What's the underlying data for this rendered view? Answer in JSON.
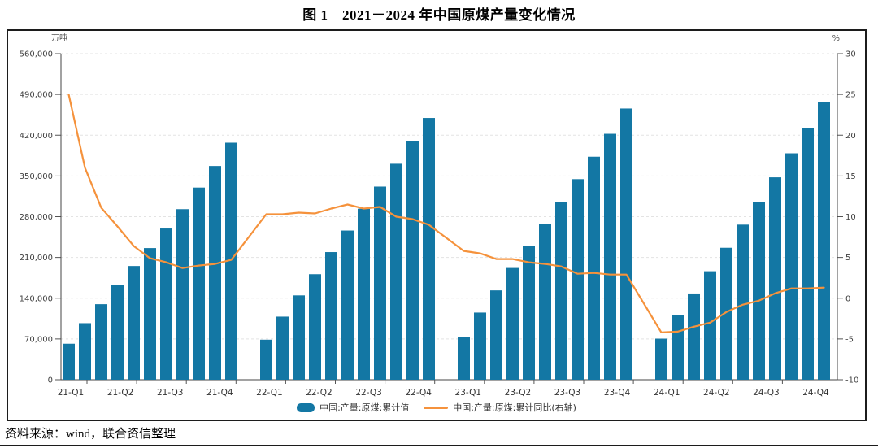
{
  "page": {
    "title": "图 1　2021－2024 年中国原煤产量变化情况",
    "source_note": "资料来源：wind，联合资信整理"
  },
  "chart_data": {
    "type": "bar",
    "title": "图 1　2021－2024 年中国原煤产量变化情况",
    "legend_position": "bottom-center",
    "grid": "horizontal-dashed",
    "x_months": [
      "2021-02",
      "2021-03",
      "2021-04",
      "2021-05",
      "2021-06",
      "2021-07",
      "2021-08",
      "2021-09",
      "2021-10",
      "2021-11",
      "2021-12",
      "2022-02",
      "2022-03",
      "2022-04",
      "2022-05",
      "2022-06",
      "2022-07",
      "2022-08",
      "2022-09",
      "2022-10",
      "2022-11",
      "2022-12",
      "2023-02",
      "2023-03",
      "2023-04",
      "2023-05",
      "2023-06",
      "2023-07",
      "2023-08",
      "2023-09",
      "2023-10",
      "2023-11",
      "2023-12",
      "2024-02",
      "2024-03",
      "2024-04",
      "2024-05",
      "2024-06",
      "2024-07",
      "2024-08",
      "2024-09",
      "2024-10",
      "2024-11",
      "2024-12"
    ],
    "x_tick_labels": [
      "21-Q1",
      "21-Q2",
      "21-Q3",
      "21-Q4",
      "22-Q1",
      "22-Q2",
      "22-Q3",
      "22-Q4",
      "23-Q1",
      "23-Q2",
      "23-Q3",
      "23-Q4",
      "24-Q1",
      "24-Q2",
      "24-Q3",
      "24-Q4"
    ],
    "series": [
      {
        "name": "中国:产量:原煤:累计值",
        "chart_type": "bar",
        "y_axis": "left",
        "color": "#1377a4",
        "values": [
          61800,
          97100,
          129700,
          162600,
          195300,
          226100,
          259700,
          292900,
          330000,
          367100,
          407100,
          68700,
          108300,
          144800,
          181200,
          219200,
          256200,
          293700,
          331700,
          370900,
          409400,
          449600,
          73400,
          115300,
          153400,
          191900,
          230000,
          267900,
          305700,
          344500,
          383000,
          422400,
          465800,
          70500,
          110600,
          148100,
          186300,
          226600,
          266300,
          305000,
          347600,
          388900,
          432800,
          476800
        ]
      },
      {
        "name": "中国:产量:原煤:累计同比(右轴)",
        "chart_type": "line",
        "y_axis": "right",
        "color": "#f5923c",
        "values": [
          25.0,
          16.0,
          11.1,
          8.8,
          6.4,
          4.9,
          4.4,
          3.7,
          4.0,
          4.2,
          4.7,
          10.3,
          10.3,
          10.5,
          10.4,
          11.0,
          11.5,
          11.0,
          11.2,
          10.0,
          9.7,
          9.0,
          5.8,
          5.5,
          4.8,
          4.8,
          4.4,
          4.2,
          3.9,
          3.0,
          3.1,
          2.9,
          2.9,
          -4.2,
          -4.1,
          -3.5,
          -3.0,
          -1.7,
          -0.8,
          -0.3,
          0.6,
          1.2,
          1.2,
          1.3
        ]
      }
    ],
    "left_axis": {
      "unit": "万吨",
      "min": 0,
      "max": 560000,
      "step": 70000,
      "tick_labels": [
        "0",
        "70,000",
        "140,000",
        "210,000",
        "280,000",
        "350,000",
        "420,000",
        "490,000",
        "560,000"
      ]
    },
    "right_axis": {
      "unit": "%",
      "min": -10,
      "max": 30,
      "step": 5,
      "tick_labels": [
        "-10",
        "-5",
        "0",
        "5",
        "10",
        "15",
        "20",
        "25",
        "30"
      ]
    }
  }
}
